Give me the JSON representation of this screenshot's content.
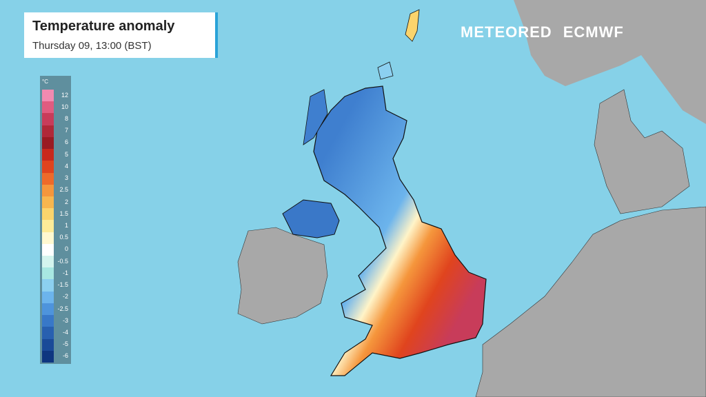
{
  "header": {
    "title": "Temperature anomaly",
    "subtitle": "Thursday 09, 13:00 (BST)"
  },
  "legend": {
    "unit": "°C",
    "items": [
      {
        "label": "12",
        "color": "#f28ab0"
      },
      {
        "label": "10",
        "color": "#e05c80"
      },
      {
        "label": "8",
        "color": "#c83c5a"
      },
      {
        "label": "7",
        "color": "#b02838"
      },
      {
        "label": "6",
        "color": "#9a1a22"
      },
      {
        "label": "5",
        "color": "#c8281c"
      },
      {
        "label": "4",
        "color": "#e0441e"
      },
      {
        "label": "3",
        "color": "#ee6a2a"
      },
      {
        "label": "2.5",
        "color": "#f5963c"
      },
      {
        "label": "2",
        "color": "#f8b64e"
      },
      {
        "label": "1.5",
        "color": "#fbd46c"
      },
      {
        "label": "1",
        "color": "#fdeb98"
      },
      {
        "label": "0.5",
        "color": "#fff8d0"
      },
      {
        "label": "0",
        "color": "#ffffff"
      },
      {
        "label": "-0.5",
        "color": "#d4f4ee"
      },
      {
        "label": "-1",
        "color": "#a8e8e2"
      },
      {
        "label": "-1.5",
        "color": "#8cd0f0"
      },
      {
        "label": "-2",
        "color": "#6cb4ec"
      },
      {
        "label": "-2.5",
        "color": "#4e94dc"
      },
      {
        "label": "-3",
        "color": "#3878c8"
      },
      {
        "label": "-4",
        "color": "#2860b0"
      },
      {
        "label": "-5",
        "color": "#1a4a98"
      },
      {
        "label": "-6",
        "color": "#0e3680"
      }
    ]
  },
  "logos": [
    "METEORED",
    "ECMWF"
  ]
}
